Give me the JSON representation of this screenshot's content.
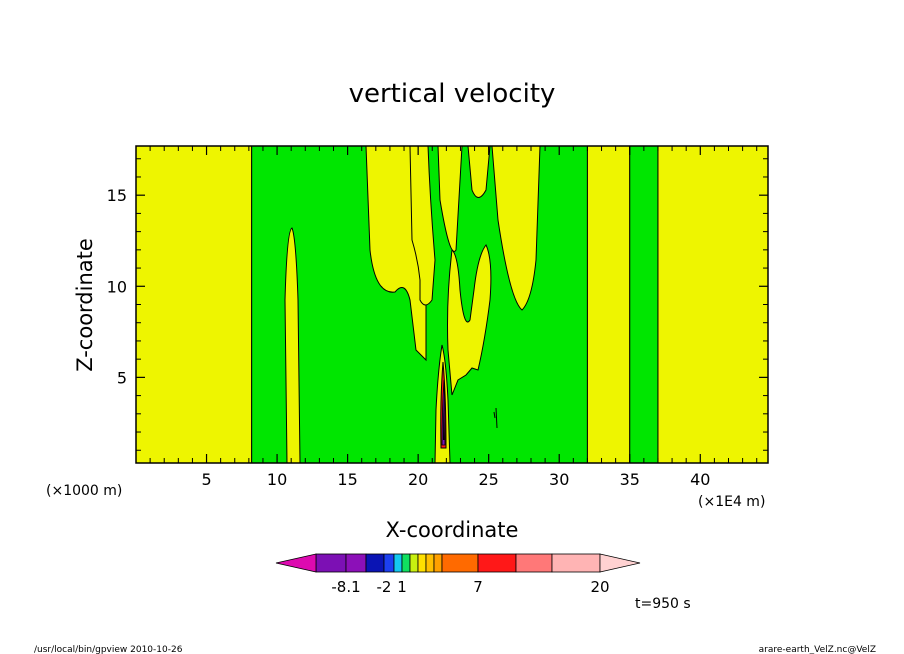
{
  "chart_data": {
    "type": "heatmap",
    "title": "vertical velocity",
    "xlabel": "X-coordinate",
    "ylabel": "Z-coordinate",
    "x_multiplier_label": "(×1E4 m)",
    "y_multiplier_label": "(×1000 m)",
    "x_ticks": [
      "5",
      "10",
      "15",
      "20",
      "25",
      "30",
      "35",
      "40"
    ],
    "x_tick_values": [
      5,
      10,
      15,
      20,
      25,
      30,
      35,
      40
    ],
    "y_ticks": [
      "5",
      "10",
      "15"
    ],
    "y_tick_values": [
      5,
      10,
      15
    ],
    "xlim": [
      0,
      44.8
    ],
    "ylim": [
      0.3,
      17.7
    ],
    "x_units": "×1E4 m",
    "y_units": "×1000 m",
    "colorbar": {
      "tick_labels": [
        "-8.1",
        "-2",
        "1",
        "7",
        "20"
      ],
      "colors": [
        "#dd0ab0",
        "#7c10b4",
        "#8c10b8",
        "#0a14b4",
        "#1c40f0",
        "#14c8f0",
        "#10e060",
        "#c8f010",
        "#ffe000",
        "#ffc000",
        "#ffa000",
        "#ff6a00",
        "#ff1818",
        "#ff7878",
        "#ffb4b4",
        "#ffd2d2"
      ]
    },
    "bands": [
      {
        "x0": 0,
        "x1": 8.2,
        "value": "0 to 1",
        "color": "#eef500"
      },
      {
        "x0": 8.2,
        "x1": 32.0,
        "value": "-1 to 0",
        "color": "#00e600"
      },
      {
        "x0": 32.0,
        "x1": 35.0,
        "value": "0 to 1",
        "color": "#eef500"
      },
      {
        "x0": 35.0,
        "x1": 37.0,
        "value": "-1 to 0",
        "color": "#00e600"
      },
      {
        "x0": 37.0,
        "x1": 44.8,
        "value": "0 to 1",
        "color": "#eef500"
      }
    ],
    "time_label": "t=950 s"
  },
  "footer": {
    "left": "/usr/local/bin/gpview  2010-10-26",
    "right": "arare-earth_VelZ.nc@VelZ"
  }
}
